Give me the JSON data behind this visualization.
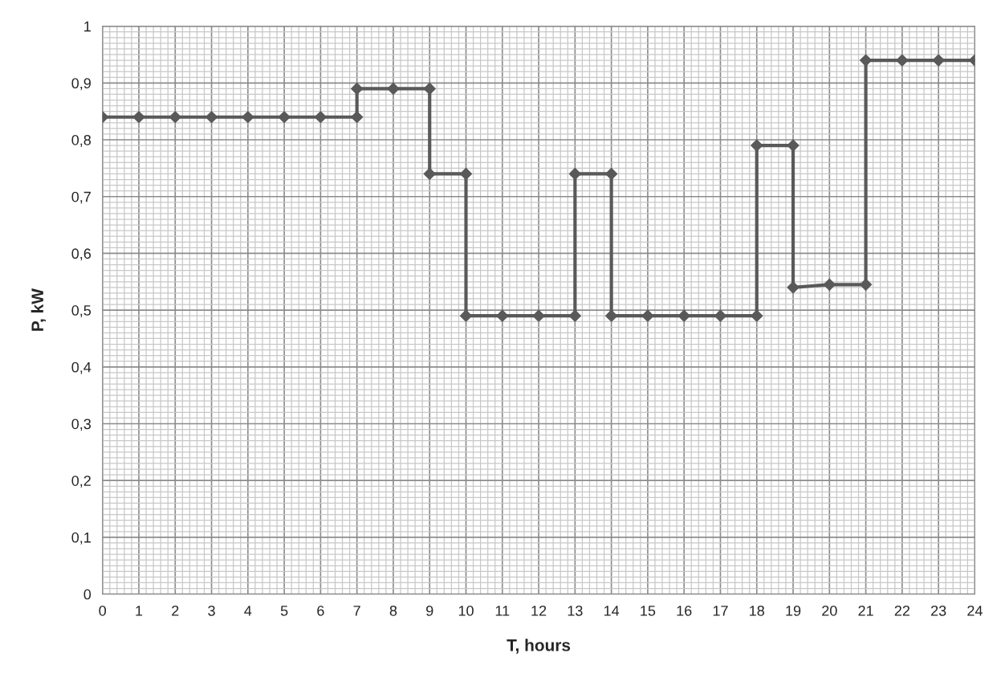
{
  "chart_data": {
    "type": "line",
    "xlabel": "T, hours",
    "ylabel": "P, kW",
    "series": [
      {
        "color": "#595959",
        "x": [
          0,
          1,
          2,
          3,
          4,
          5,
          6,
          7,
          7,
          8,
          9,
          9,
          10,
          10,
          11,
          12,
          13,
          13,
          14,
          14,
          15,
          16,
          17,
          18,
          18,
          19,
          19,
          20,
          21,
          21,
          22,
          23,
          24
        ],
        "values": [
          0.84,
          0.84,
          0.84,
          0.84,
          0.84,
          0.84,
          0.84,
          0.84,
          0.89,
          0.89,
          0.89,
          0.74,
          0.74,
          0.49,
          0.49,
          0.49,
          0.49,
          0.74,
          0.74,
          0.49,
          0.49,
          0.49,
          0.49,
          0.49,
          0.79,
          0.79,
          0.54,
          0.545,
          0.545,
          0.94,
          0.94,
          0.94,
          0.94
        ]
      }
    ],
    "xlim": [
      0,
      24
    ],
    "xticks": [
      0,
      1,
      2,
      3,
      4,
      5,
      6,
      7,
      8,
      9,
      10,
      11,
      12,
      13,
      14,
      15,
      16,
      17,
      18,
      19,
      20,
      21,
      22,
      23,
      24
    ],
    "ylim": [
      0,
      1
    ],
    "yticks": [
      0,
      {
        "value": 0.1,
        "label": "0,1"
      },
      {
        "value": 0.2,
        "label": "0,2"
      },
      {
        "value": 0.3,
        "label": "0,3"
      },
      {
        "value": 0.4,
        "label": "0,4"
      },
      {
        "value": 0.5,
        "label": "0,5"
      },
      {
        "value": 0.6,
        "label": "0,6"
      },
      {
        "value": 0.7,
        "label": "0,7"
      },
      {
        "value": 0.8,
        "label": "0,8"
      },
      {
        "value": 0.9,
        "label": "0,9"
      },
      1
    ],
    "grid": true,
    "marker": "diamond",
    "line_style": "solid",
    "legend": false
  }
}
